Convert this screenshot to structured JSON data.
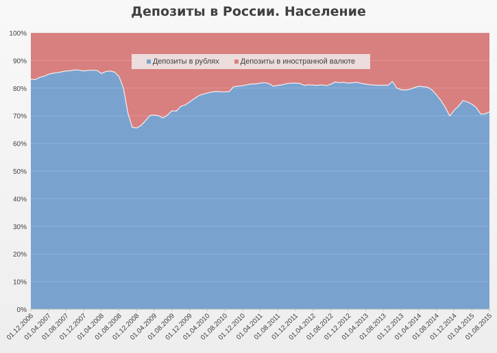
{
  "chart_data": {
    "type": "area",
    "stacked_percent": true,
    "title": "Депозиты в России. Население",
    "yticks": [
      "0%",
      "10%",
      "20%",
      "30%",
      "40%",
      "50%",
      "60%",
      "70%",
      "80%",
      "90%",
      "100%"
    ],
    "ylim": [
      0,
      100
    ],
    "grid": true,
    "legend_position": "top",
    "xticks": [
      "01.12.2006",
      "01.04.2007",
      "01.08.2007",
      "01.12.2007",
      "01.04.2008",
      "01.08.2008",
      "01.12.2008",
      "01.04.2009",
      "01.08.2009",
      "01.12.2009",
      "01.04.2010",
      "01.08.2010",
      "01.12.2010",
      "01.04.2011",
      "01.08.2011",
      "01.12.2011",
      "01.04.2012",
      "01.08.2012",
      "01.12.2012",
      "01.04.2013",
      "01.08.2013",
      "01.12.2013",
      "01.04.2014",
      "01.08.2014",
      "01.12.2014",
      "01.04.2015",
      "01.08.2015"
    ],
    "x_start": "2006-12",
    "x_end": "2015-10",
    "series": [
      {
        "name": "Депозиты в рублях",
        "color": "#7aa2cf",
        "values": [
          83.2,
          83.1,
          83.9,
          84.3,
          85.0,
          85.4,
          85.6,
          85.9,
          86.2,
          86.3,
          86.6,
          86.5,
          86.2,
          86.4,
          86.5,
          86.4,
          85.3,
          86.0,
          86.2,
          85.8,
          84.2,
          80.0,
          71.0,
          65.8,
          65.6,
          66.5,
          68.2,
          70.1,
          70.3,
          70.0,
          69.2,
          70.3,
          71.8,
          71.7,
          73.4,
          73.9,
          75.0,
          76.1,
          77.2,
          77.8,
          78.2,
          78.6,
          78.8,
          78.7,
          78.6,
          78.8,
          80.5,
          80.7,
          80.9,
          81.2,
          81.5,
          81.5,
          81.8,
          82.0,
          81.6,
          80.7,
          81.0,
          81.2,
          81.6,
          81.8,
          81.8,
          81.7,
          81.0,
          81.2,
          81.1,
          81.0,
          81.2,
          80.9,
          81.4,
          82.2,
          82.0,
          82.1,
          81.8,
          82.0,
          82.1,
          81.7,
          81.4,
          81.2,
          81.1,
          81.0,
          81.1,
          81.0,
          82.4,
          80.0,
          79.4,
          79.3,
          79.6,
          80.2,
          80.7,
          80.5,
          80.3,
          79.3,
          77.5,
          75.5,
          73.0,
          69.9,
          72.0,
          73.5,
          75.5,
          75.0,
          74.2,
          73.0,
          70.6,
          70.7,
          71.4
        ],
        "values_note_unused": null
      },
      {
        "name": "Депозиты в иностранной валюте",
        "color": "#d87f7f",
        "values": [
          16.8,
          16.9,
          16.1,
          15.7,
          15.0,
          14.6,
          14.4,
          14.1,
          13.8,
          13.7,
          13.4,
          13.5,
          13.8,
          13.6,
          13.5,
          13.6,
          14.7,
          14.0,
          13.8,
          14.2,
          15.8,
          20.0,
          29.0,
          34.2,
          34.4,
          33.5,
          31.8,
          29.9,
          29.7,
          30.0,
          30.8,
          29.7,
          28.2,
          28.3,
          26.6,
          26.1,
          25.0,
          23.9,
          22.8,
          22.2,
          21.8,
          21.4,
          21.2,
          21.3,
          21.4,
          21.2,
          19.5,
          19.3,
          19.1,
          18.8,
          18.5,
          18.5,
          18.2,
          18.0,
          18.4,
          19.3,
          19.0,
          18.8,
          18.4,
          18.2,
          18.2,
          18.3,
          19.0,
          18.8,
          18.9,
          19.0,
          18.8,
          19.1,
          18.6,
          17.8,
          18.0,
          17.9,
          18.2,
          18.0,
          17.9,
          18.3,
          18.6,
          18.8,
          18.9,
          19.0,
          18.9,
          19.0,
          17.6,
          20.0,
          20.6,
          20.7,
          20.4,
          19.8,
          19.3,
          19.5,
          19.7,
          20.7,
          22.5,
          24.5,
          27.0,
          30.1,
          28.0,
          26.5,
          24.5,
          25.0,
          25.8,
          27.0,
          29.4,
          29.3,
          28.6
        ]
      }
    ]
  },
  "colors": {
    "rub": "#7aa2cf",
    "fx": "#d87f7f",
    "grid": "#d9d9d9",
    "axis_text": "#404040"
  }
}
